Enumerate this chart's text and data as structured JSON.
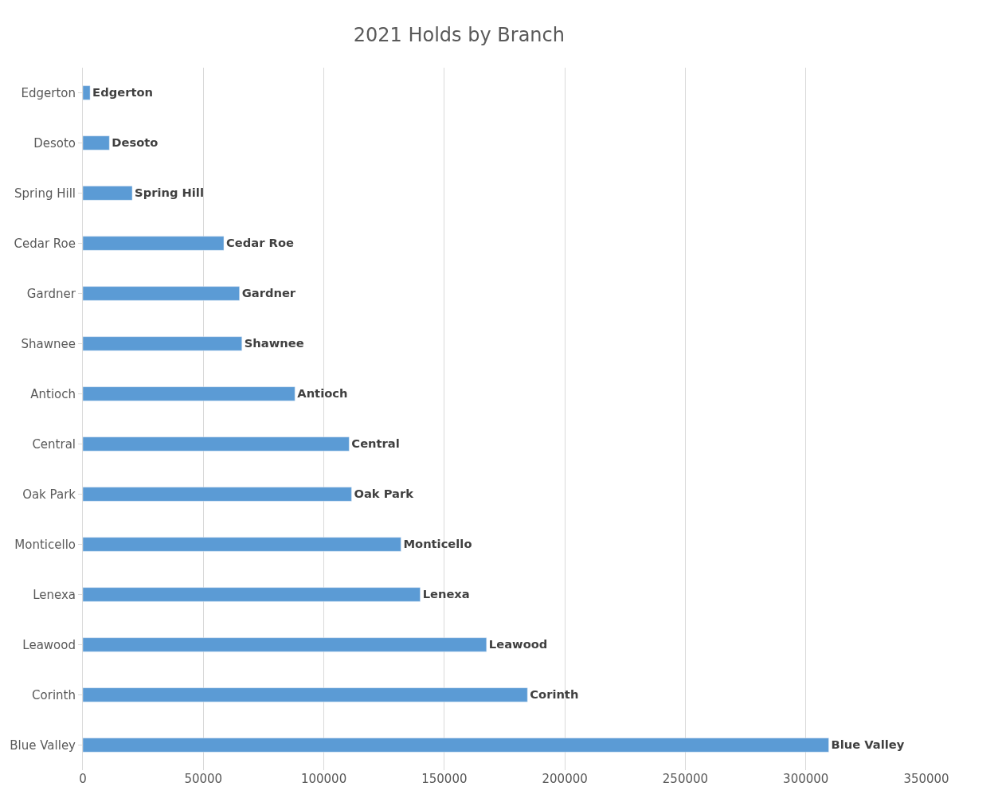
{
  "chart_data": {
    "type": "bar",
    "orientation": "horizontal",
    "title": "2021 Holds by Branch",
    "categories": [
      "Edgerton",
      "Desoto",
      "Spring Hill",
      "Cedar Roe",
      "Gardner",
      "Shawnee",
      "Antioch",
      "Central",
      "Oak Park",
      "Monticello",
      "Lenexa",
      "Leawood",
      "Corinth",
      "Blue Valley"
    ],
    "values": [
      3000,
      11000,
      20500,
      58500,
      65000,
      66000,
      88000,
      110500,
      111500,
      132000,
      140000,
      167500,
      184500,
      309500
    ],
    "value_labels": [
      "Edgerton",
      "Desoto",
      "Spring Hill",
      "Cedar Roe",
      "Gardner",
      "Shawnee",
      "Antioch",
      "Central",
      "Oak Park",
      "Monticello",
      "Lenexa",
      "Leawood",
      "Corinth",
      "Blue Valley"
    ],
    "color": "#5b9bd5",
    "xlim": [
      0,
      350000
    ],
    "xticks": [
      0,
      50000,
      100000,
      150000,
      200000,
      250000,
      300000,
      350000
    ],
    "grid": "x",
    "legend": false
  }
}
